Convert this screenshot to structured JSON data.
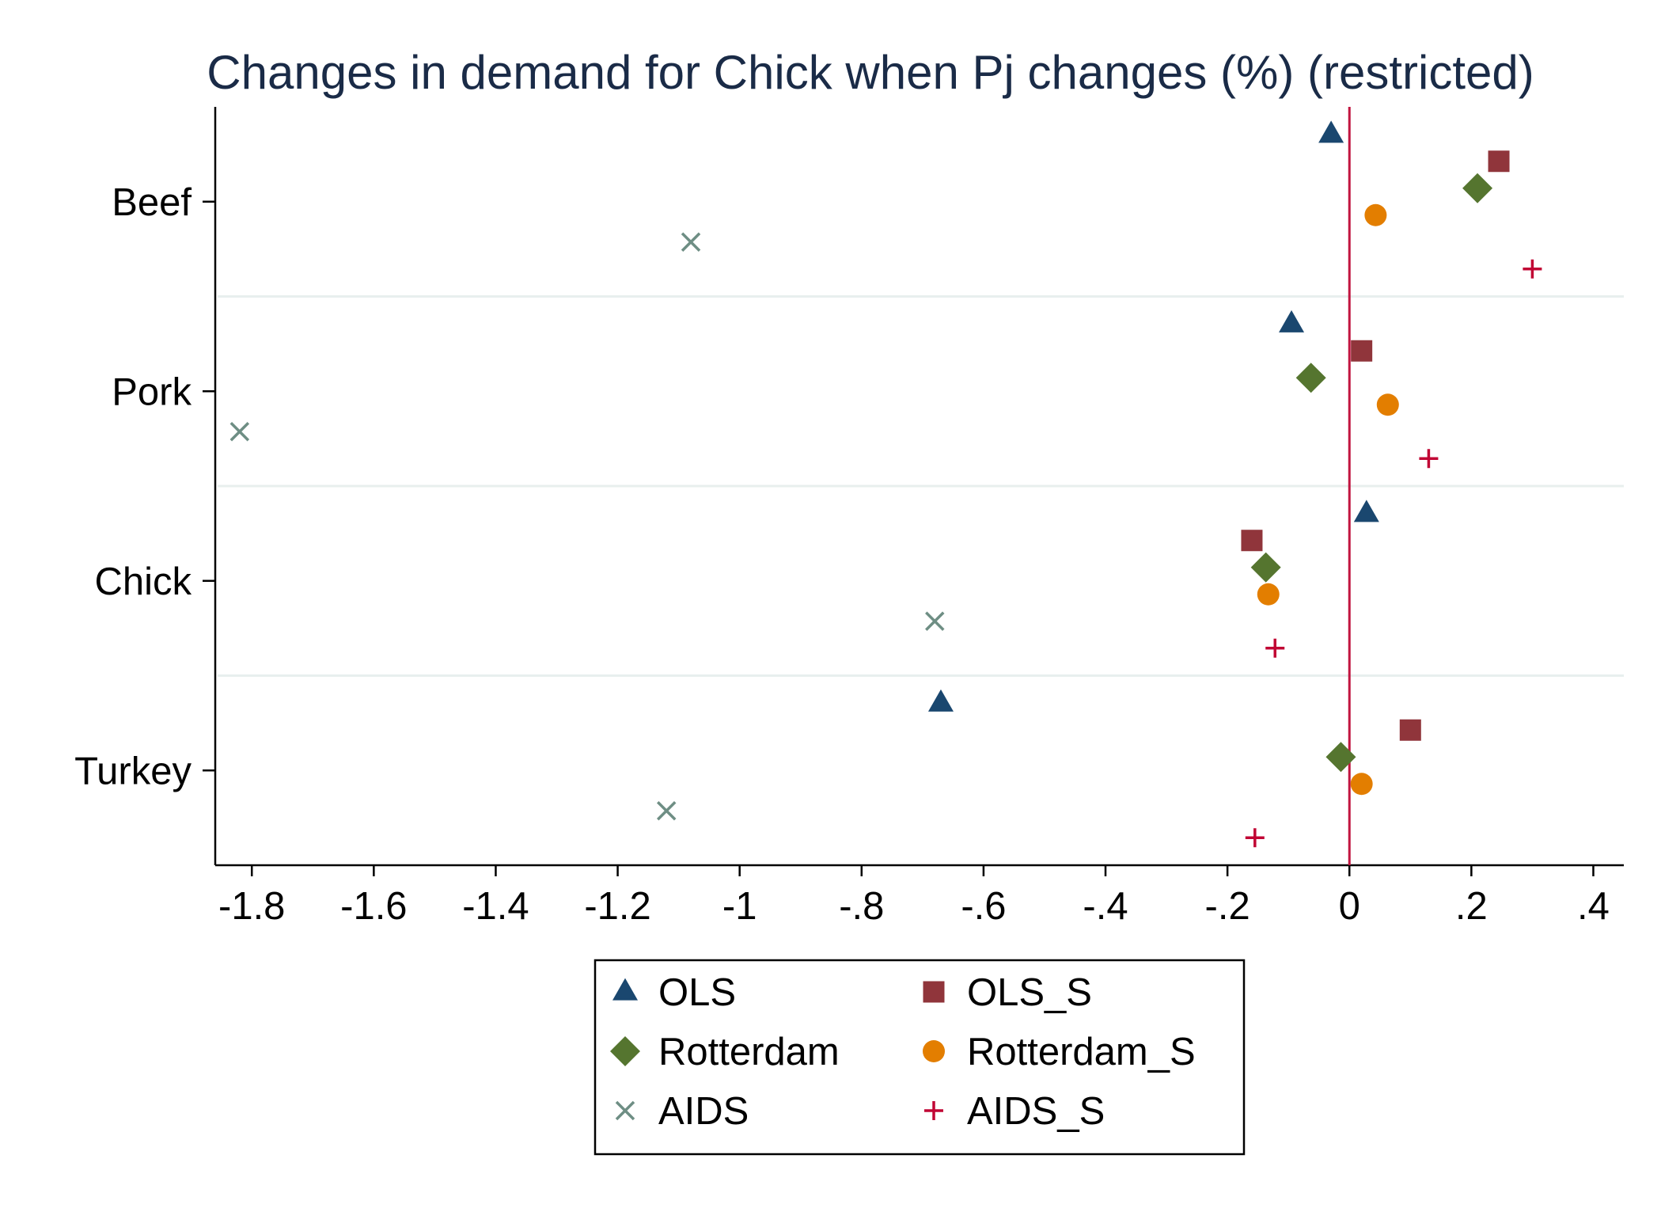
{
  "chart_data": {
    "type": "scatter",
    "title": "Changes in demand for Chick when Pj changes (%) (restricted)",
    "xlabel": "",
    "ylabel": "",
    "xlim": [
      -1.86,
      0.45
    ],
    "x_ticks": [
      -1.8,
      -1.6,
      -1.4,
      -1.2,
      -1,
      -0.8,
      -0.6,
      -0.4,
      -0.2,
      0,
      0.2,
      0.4
    ],
    "x_tick_labels": [
      "-1.8",
      "-1.6",
      "-1.4",
      "-1.2",
      "-1",
      "-.8",
      "-.6",
      "-.4",
      "-.2",
      "0",
      ".2",
      ".4"
    ],
    "categories": [
      "Beef",
      "Pork",
      "Chick",
      "Turkey"
    ],
    "reference_line_x": 0,
    "reference_line_color": "#c1143f",
    "legend_position": "bottom",
    "grid": true,
    "series": [
      {
        "name": "OLS",
        "marker": "triangle",
        "color": "#1a476f",
        "values": [
          -0.03,
          -0.095,
          0.028,
          -0.67
        ]
      },
      {
        "name": "OLS_S",
        "marker": "square",
        "color": "#90353b",
        "values": [
          0.245,
          0.02,
          -0.16,
          0.1
        ]
      },
      {
        "name": "Rotterdam",
        "marker": "diamond",
        "color": "#55752f",
        "values": [
          0.21,
          -0.063,
          -0.137,
          -0.014
        ]
      },
      {
        "name": "Rotterdam_S",
        "marker": "circle",
        "color": "#e37e00",
        "values": [
          0.043,
          0.063,
          -0.133,
          0.02
        ]
      },
      {
        "name": "AIDS",
        "marker": "x",
        "color": "#6e8e84",
        "values": [
          -1.08,
          -1.82,
          -0.68,
          -1.12
        ]
      },
      {
        "name": "AIDS_S",
        "marker": "plus",
        "color": "#c10534",
        "values": [
          0.3,
          0.13,
          -0.122,
          -0.155
        ]
      }
    ]
  }
}
